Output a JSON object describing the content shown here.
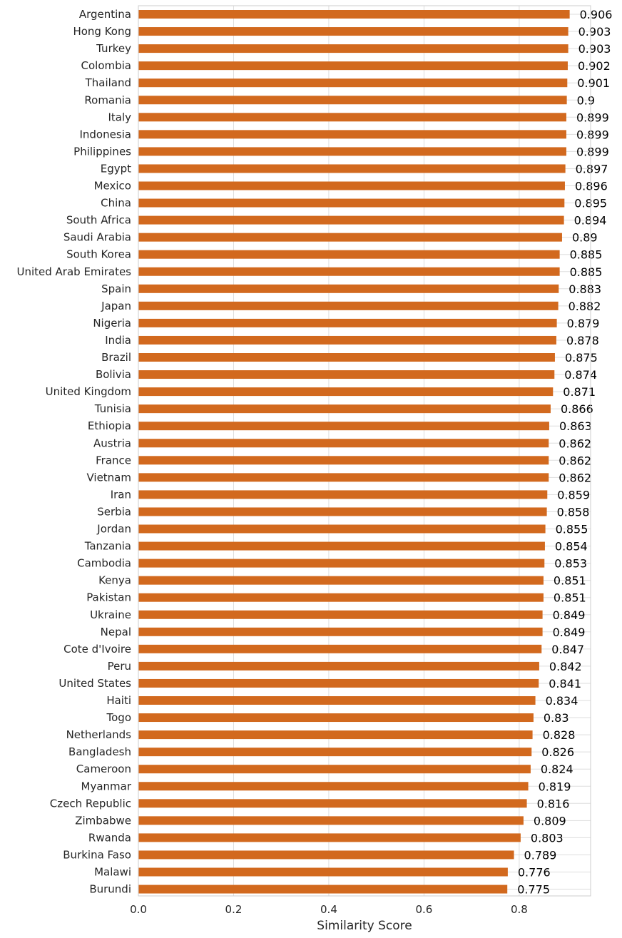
{
  "chart_data": {
    "type": "bar",
    "orientation": "horizontal",
    "title": "",
    "xlabel": "Similarity Score",
    "ylabel": "",
    "xlim": [
      0,
      0.95
    ],
    "xticks": [
      "0.0",
      "0.2",
      "0.4",
      "0.6",
      "0.8"
    ],
    "grid": true,
    "bar_color": "#d2691e",
    "categories": [
      "Argentina",
      "Hong Kong",
      "Turkey",
      "Colombia",
      "Thailand",
      "Romania",
      "Italy",
      "Indonesia",
      "Philippines",
      "Egypt",
      "Mexico",
      "China",
      "South Africa",
      "Saudi Arabia",
      "South Korea",
      "United Arab Emirates",
      "Spain",
      "Japan",
      "Nigeria",
      "India",
      "Brazil",
      "Bolivia",
      "United Kingdom",
      "Tunisia",
      "Ethiopia",
      "Austria",
      "France",
      "Vietnam",
      "Iran",
      "Serbia",
      "Jordan",
      "Tanzania",
      "Cambodia",
      "Kenya",
      "Pakistan",
      "Ukraine",
      "Nepal",
      "Cote d'Ivoire",
      "Peru",
      "United States",
      "Haiti",
      "Togo",
      "Netherlands",
      "Bangladesh",
      "Cameroon",
      "Myanmar",
      "Czech Republic",
      "Zimbabwe",
      "Rwanda",
      "Burkina Faso",
      "Malawi",
      "Burundi"
    ],
    "values": [
      0.906,
      0.903,
      0.903,
      0.902,
      0.901,
      0.9,
      0.899,
      0.899,
      0.899,
      0.897,
      0.896,
      0.895,
      0.894,
      0.89,
      0.885,
      0.885,
      0.883,
      0.882,
      0.879,
      0.878,
      0.875,
      0.874,
      0.871,
      0.866,
      0.863,
      0.862,
      0.862,
      0.862,
      0.859,
      0.858,
      0.855,
      0.854,
      0.853,
      0.851,
      0.851,
      0.849,
      0.849,
      0.847,
      0.842,
      0.841,
      0.834,
      0.83,
      0.828,
      0.826,
      0.824,
      0.819,
      0.816,
      0.809,
      0.803,
      0.789,
      0.776,
      0.775
    ],
    "value_labels": [
      "0.906",
      "0.903",
      "0.903",
      "0.902",
      "0.901",
      "0.9",
      "0.899",
      "0.899",
      "0.899",
      "0.897",
      "0.896",
      "0.895",
      "0.894",
      "0.89",
      "0.885",
      "0.885",
      "0.883",
      "0.882",
      "0.879",
      "0.878",
      "0.875",
      "0.874",
      "0.871",
      "0.866",
      "0.863",
      "0.862",
      "0.862",
      "0.862",
      "0.859",
      "0.858",
      "0.855",
      "0.854",
      "0.853",
      "0.851",
      "0.851",
      "0.849",
      "0.849",
      "0.847",
      "0.842",
      "0.841",
      "0.834",
      "0.83",
      "0.828",
      "0.826",
      "0.824",
      "0.819",
      "0.816",
      "0.809",
      "0.803",
      "0.789",
      "0.776",
      "0.775"
    ]
  }
}
